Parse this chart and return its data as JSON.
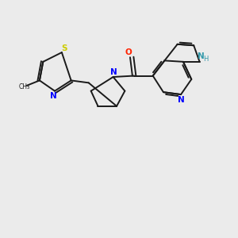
{
  "background_color": "#ebebeb",
  "bond_color": "#1a1a1a",
  "S_color": "#cccc00",
  "N_color": "#0000ff",
  "O_color": "#ff2200",
  "NH_color": "#3399aa",
  "figsize": [
    3.0,
    3.0
  ],
  "dpi": 100,
  "xlim": [
    0,
    10
  ],
  "ylim": [
    0,
    10
  ]
}
